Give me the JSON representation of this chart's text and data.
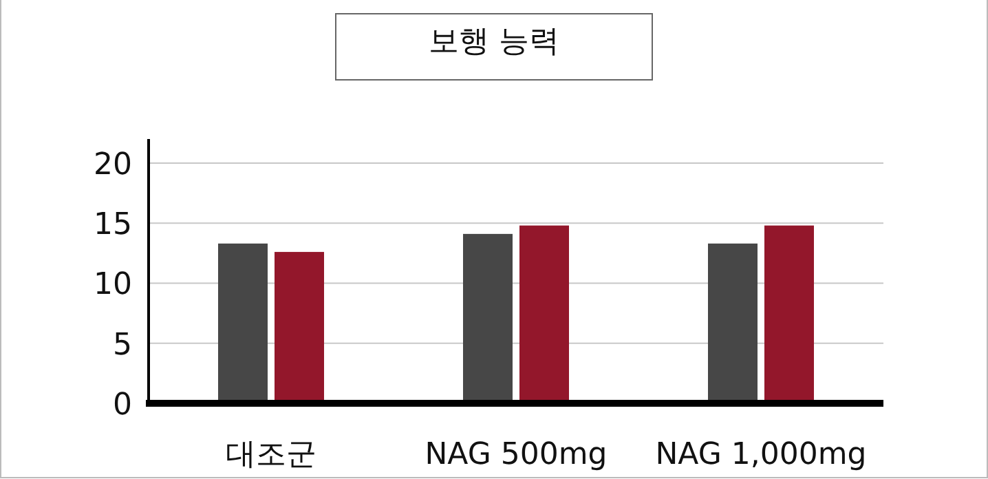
{
  "chart_data": {
    "type": "bar",
    "title": "보행 능력",
    "categories": [
      "대조군",
      "NAG 500mg",
      "NAG 1,000mg"
    ],
    "series": [
      {
        "color": "#474747",
        "values": [
          13.3,
          14.1,
          13.3
        ]
      },
      {
        "color": "#93172b",
        "values": [
          12.6,
          14.8,
          14.8
        ]
      }
    ],
    "ylim": [
      0,
      22
    ],
    "yticks": [
      0,
      5,
      10,
      15,
      20
    ],
    "grid": "y"
  }
}
